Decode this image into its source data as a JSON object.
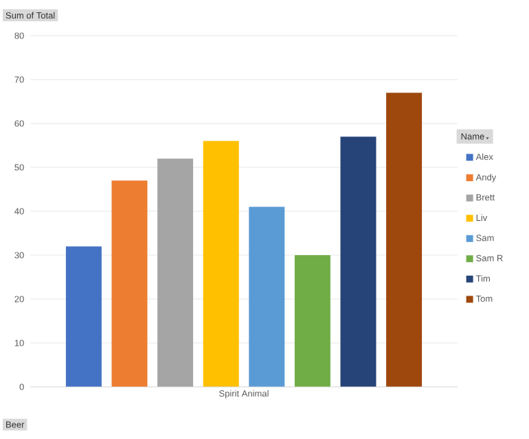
{
  "chart_data": {
    "type": "bar",
    "ylabel": "Sum of Total",
    "categories": [
      "Spirit Animal"
    ],
    "series": [
      {
        "name": "Alex",
        "color": "#4472c4",
        "values": [
          32
        ]
      },
      {
        "name": "Andy",
        "color": "#ed7d31",
        "values": [
          47
        ]
      },
      {
        "name": "Brett",
        "color": "#a5a5a5",
        "values": [
          52
        ]
      },
      {
        "name": "Liv",
        "color": "#ffc000",
        "values": [
          56
        ]
      },
      {
        "name": "Sam",
        "color": "#5b9bd5",
        "values": [
          41
        ]
      },
      {
        "name": "Sam R",
        "color": "#70ad47",
        "values": [
          30
        ]
      },
      {
        "name": "Tim",
        "color": "#264478",
        "values": [
          57
        ]
      },
      {
        "name": "Tom",
        "color": "#9e480e",
        "values": [
          67
        ]
      }
    ],
    "ylim": [
      0,
      80
    ],
    "yticks": [
      0,
      10,
      20,
      30,
      40,
      50,
      60,
      70,
      80
    ],
    "grid": "y",
    "legend": "right",
    "legend_title": "Name",
    "annotations": [
      "Beer"
    ]
  }
}
